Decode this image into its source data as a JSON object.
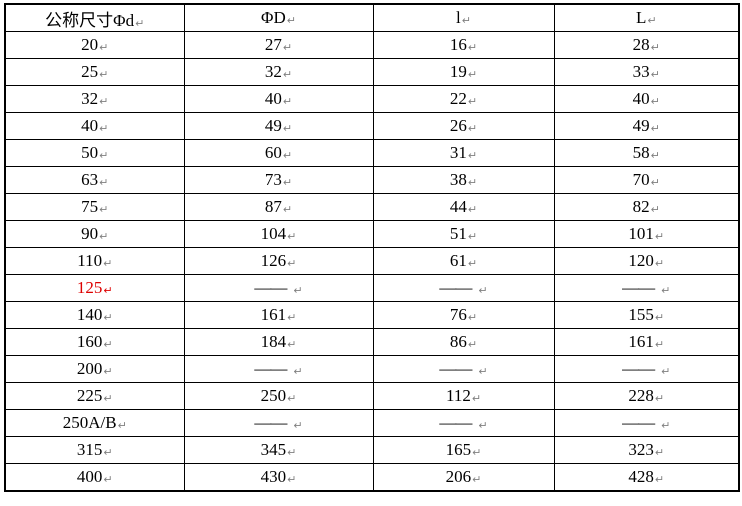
{
  "table": {
    "columns": [
      "公称尺寸Φd",
      "ΦD",
      "l",
      "L"
    ],
    "paragraph_mark": "↵",
    "dash": "——",
    "highlighted_value": "125",
    "rows": [
      [
        "20",
        "27",
        "16",
        "28"
      ],
      [
        "25",
        "32",
        "19",
        "33"
      ],
      [
        "32",
        "40",
        "22",
        "40"
      ],
      [
        "40",
        "49",
        "26",
        "49"
      ],
      [
        "50",
        "60",
        "31",
        "58"
      ],
      [
        "63",
        "73",
        "38",
        "70"
      ],
      [
        "75",
        "87",
        "44",
        "82"
      ],
      [
        "90",
        "104",
        "51",
        "101"
      ],
      [
        "110",
        "126",
        "61",
        "120"
      ],
      [
        "125",
        "——",
        "——",
        "——"
      ],
      [
        "140",
        "161",
        "76",
        "155"
      ],
      [
        "160",
        "184",
        "86",
        "161"
      ],
      [
        "200",
        "——",
        "——",
        "——"
      ],
      [
        "225",
        "250",
        "112",
        "228"
      ],
      [
        "250A/B",
        "——",
        "——",
        "——"
      ],
      [
        "315",
        "345",
        "165",
        "323"
      ],
      [
        "400",
        "430",
        "206",
        "428"
      ]
    ]
  },
  "colors": {
    "highlight_red": "#dd0000",
    "border_black": "#000000",
    "paragraph_mark_gray": "#808080"
  }
}
